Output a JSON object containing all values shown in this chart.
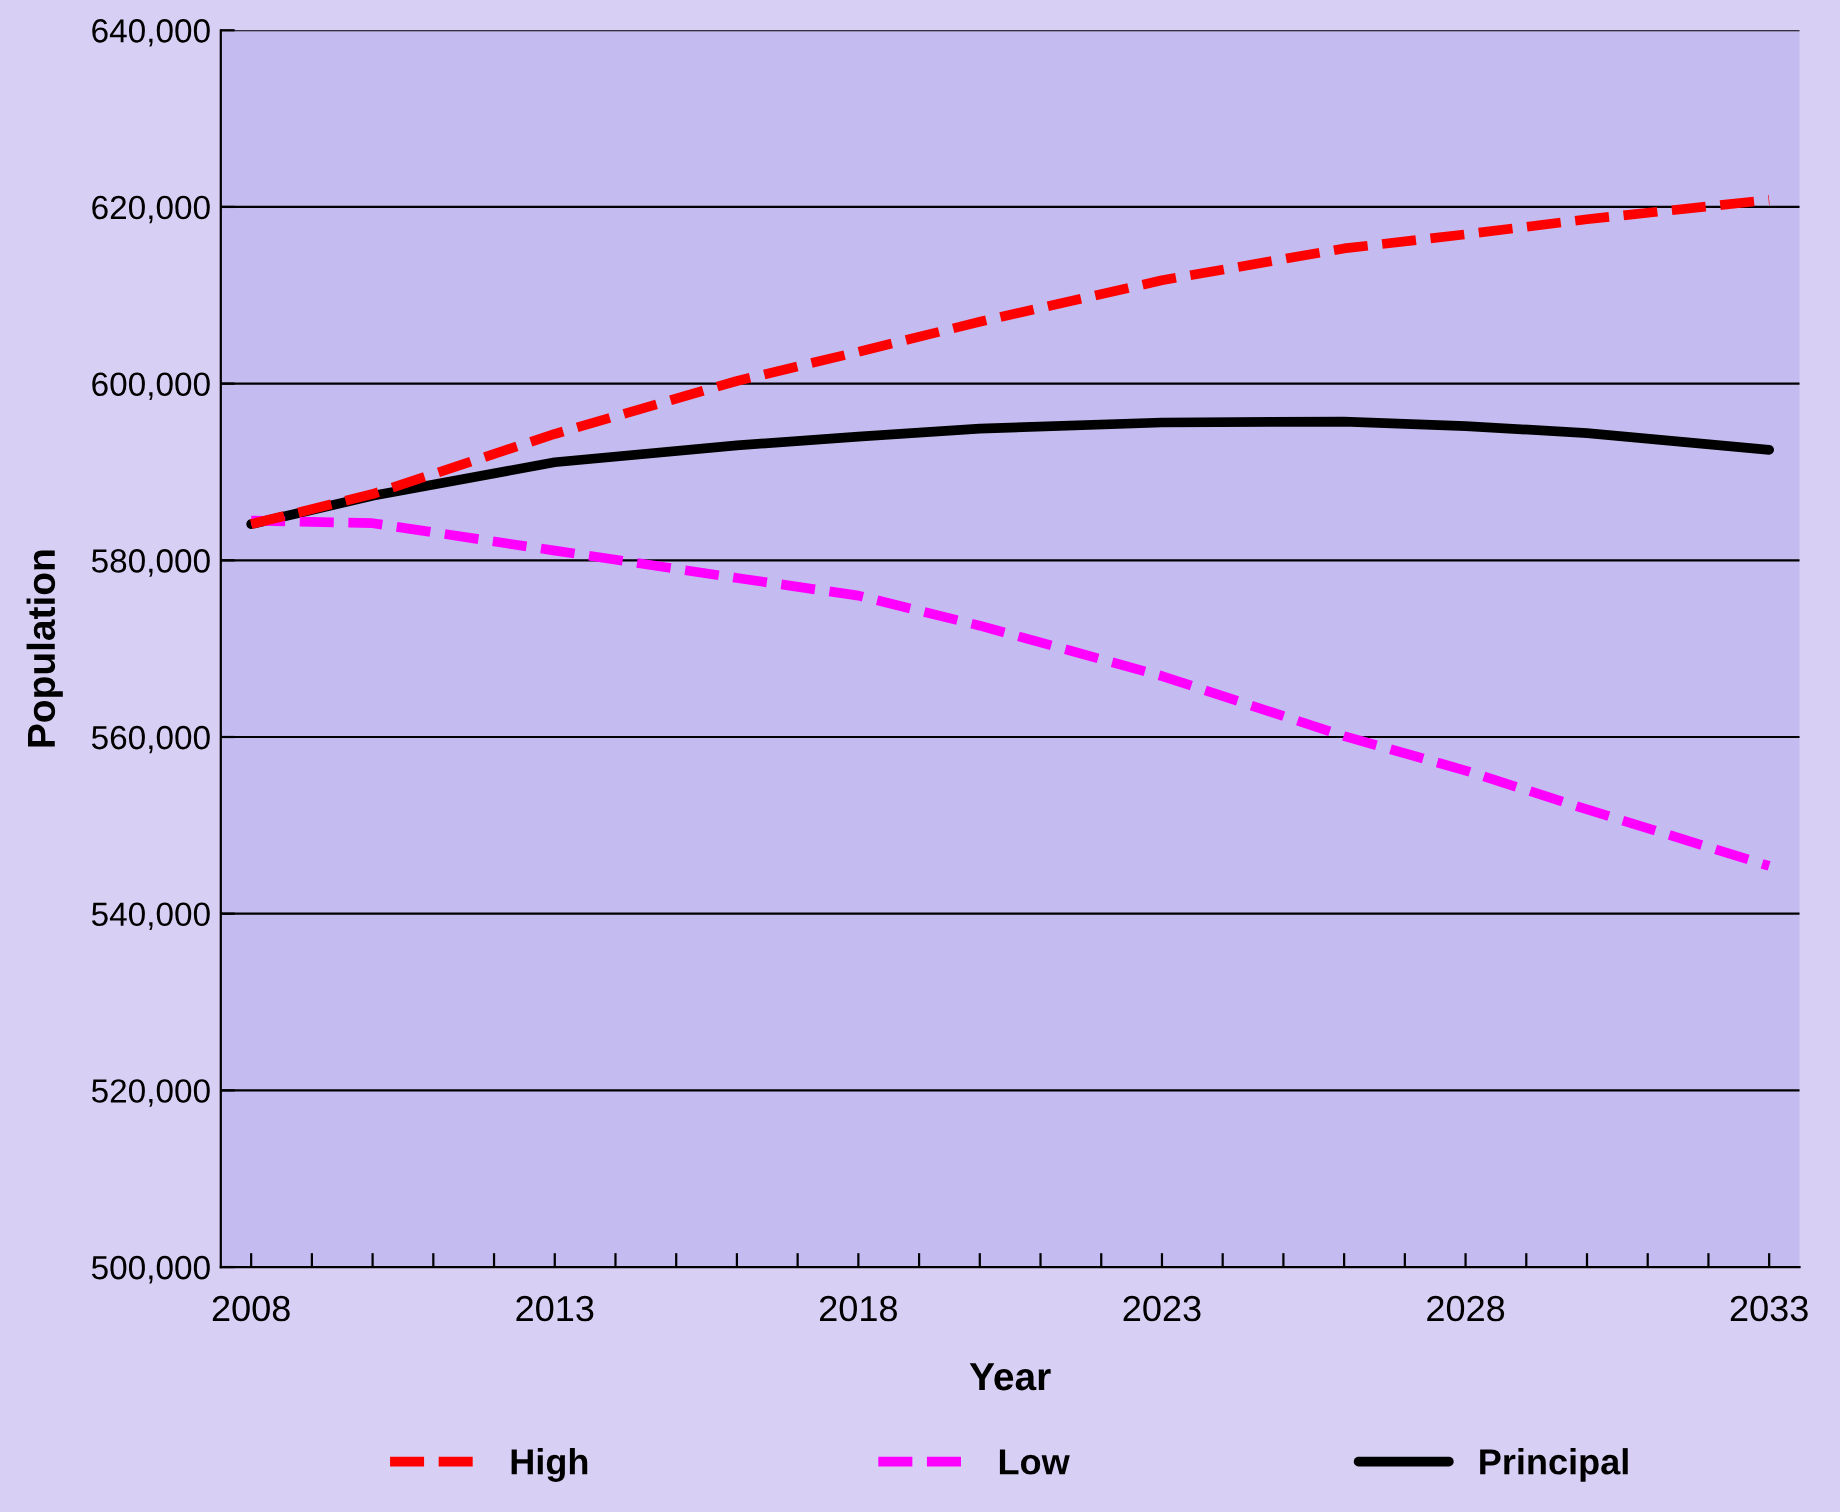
{
  "chart_data": {
    "type": "line",
    "xlabel": "Year",
    "ylabel": "Population",
    "x": [
      2008,
      2010,
      2013,
      2016,
      2018,
      2020,
      2023,
      2026,
      2028,
      2030,
      2033
    ],
    "xlim": [
      2007.5,
      2033.5
    ],
    "xticks": [
      2008,
      {
        "value": 2009,
        "label": null
      },
      {
        "value": 2010,
        "label": null
      },
      {
        "value": 2011,
        "label": null
      },
      {
        "value": 2012,
        "label": null
      },
      2013,
      {
        "value": 2014,
        "label": null
      },
      {
        "value": 2015,
        "label": null
      },
      {
        "value": 2016,
        "label": null
      },
      {
        "value": 2017,
        "label": null
      },
      2018,
      {
        "value": 2019,
        "label": null
      },
      {
        "value": 2020,
        "label": null
      },
      {
        "value": 2021,
        "label": null
      },
      {
        "value": 2022,
        "label": null
      },
      2023,
      {
        "value": 2024,
        "label": null
      },
      {
        "value": 2025,
        "label": null
      },
      {
        "value": 2026,
        "label": null
      },
      {
        "value": 2027,
        "label": null
      },
      2028,
      {
        "value": 2029,
        "label": null
      },
      {
        "value": 2030,
        "label": null
      },
      {
        "value": 2031,
        "label": null
      },
      {
        "value": 2032,
        "label": null
      },
      2033
    ],
    "ylim": [
      500000,
      640000
    ],
    "yticks": [
      {
        "value": 500000,
        "label": "500,000"
      },
      {
        "value": 520000,
        "label": "520,000"
      },
      {
        "value": 540000,
        "label": "540,000"
      },
      {
        "value": 560000,
        "label": "560,000"
      },
      {
        "value": 580000,
        "label": "580,000"
      },
      {
        "value": 600000,
        "label": "600,000"
      },
      {
        "value": 620000,
        "label": "620,000"
      },
      {
        "value": 640000,
        "label": "640,000"
      }
    ],
    "grid": "y",
    "legend": "bottom",
    "marker": "none",
    "series": [
      {
        "name": "High",
        "color": "#ff0000",
        "line_style": "dashed",
        "values": [
          584100,
          587500,
          594300,
          600300,
          603600,
          607000,
          611700,
          615300,
          616900,
          618600,
          620800
        ]
      },
      {
        "name": "Low",
        "color": "#ff00ff",
        "line_style": "dashed",
        "values": [
          584500,
          584200,
          581100,
          578000,
          576000,
          572600,
          566900,
          560100,
          556200,
          551800,
          545400
        ]
      },
      {
        "name": "Principal",
        "color": "#000000",
        "line_style": "solid",
        "values": [
          584100,
          587300,
          591100,
          593000,
          594000,
          594900,
          595600,
          595700,
          595200,
          594400,
          592500
        ]
      }
    ]
  }
}
